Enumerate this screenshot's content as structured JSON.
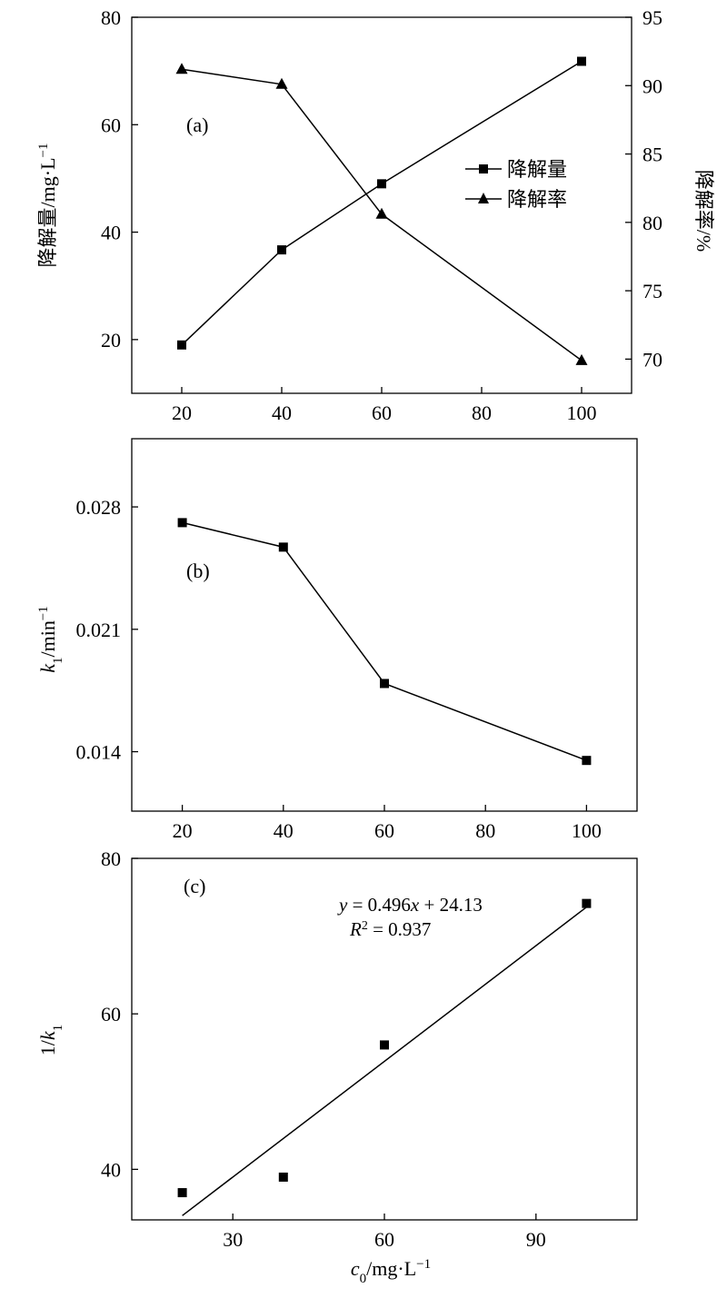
{
  "chart_data": [
    {
      "panel": "(a)",
      "type": "line",
      "x": [
        20,
        40,
        60,
        100
      ],
      "xlim": [
        10,
        110
      ],
      "xticks": [
        20,
        40,
        60,
        80,
        100
      ],
      "xlabel": "",
      "ylabel": "降解量/mg·L⁻¹",
      "ylim": [
        10,
        80
      ],
      "yticks": [
        20,
        40,
        60,
        80
      ],
      "y2label": "降解率/%",
      "y2lim": [
        67.5,
        95
      ],
      "y2ticks": [
        70,
        75,
        80,
        85,
        90,
        95
      ],
      "legend_position": "center-right",
      "series": [
        {
          "name": "降解量",
          "marker": "square",
          "axis": "left",
          "values": [
            19.0,
            36.7,
            49.0,
            71.8
          ]
        },
        {
          "name": "降解率",
          "marker": "triangle",
          "axis": "right",
          "values": [
            91.2,
            90.1,
            80.6,
            69.9
          ]
        }
      ]
    },
    {
      "panel": "(b)",
      "type": "line",
      "x": [
        20,
        40,
        60,
        100
      ],
      "xlim": [
        10,
        110
      ],
      "xticks": [
        20,
        40,
        60,
        80,
        100
      ],
      "xlabel": "",
      "ylabel": "k₁/min⁻¹",
      "ylim": [
        0.0106,
        0.0319
      ],
      "yticks": [
        0.014,
        0.021,
        0.028
      ],
      "ytick_labels": [
        "0.014",
        "0.021",
        "0.028"
      ],
      "series": [
        {
          "name": "",
          "marker": "square",
          "values": [
            0.0271,
            0.0257,
            0.0179,
            0.0135
          ]
        }
      ]
    },
    {
      "panel": "(c)",
      "type": "scatter",
      "x": [
        20,
        40,
        60,
        100
      ],
      "xlim": [
        10,
        110
      ],
      "xticks": [
        30,
        60,
        90
      ],
      "xlabel": "c₀/mg·L⁻¹",
      "ylabel": "1/k₁",
      "ylim": [
        33.5,
        80
      ],
      "yticks": [
        40,
        60,
        80
      ],
      "series": [
        {
          "name": "",
          "marker": "square",
          "values": [
            37.0,
            39.0,
            56.0,
            74.2
          ]
        }
      ],
      "fit": {
        "slope": 0.496,
        "intercept": 24.13,
        "x_range": [
          20,
          100
        ]
      },
      "annotation": {
        "equation": "y = 0.496x + 24.13",
        "r2": "R² = 0.937"
      }
    }
  ]
}
